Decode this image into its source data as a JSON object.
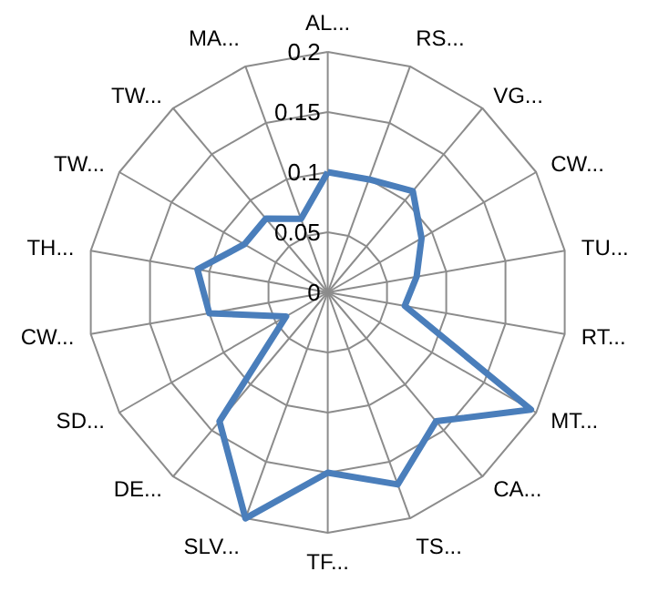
{
  "chart_data": {
    "type": "radar",
    "categories": [
      "AL...",
      "RS...",
      "VG...",
      "CW...",
      "TU...",
      "RT...",
      "MT...",
      "CA...",
      "TS...",
      "TF...",
      "SLV...",
      "DE...",
      "SD...",
      "CW...",
      "TH...",
      "TW...",
      "TW...",
      "MA..."
    ],
    "series": [
      {
        "color": "#4a7ebb",
        "values": [
          0.1,
          0.1,
          0.11,
          0.09,
          0.075,
          0.065,
          0.195,
          0.14,
          0.17,
          0.15,
          0.2,
          0.14,
          0.04,
          0.1,
          0.11,
          0.08,
          0.08,
          0.065
        ]
      }
    ],
    "ylim": [
      0,
      0.2
    ],
    "yticks": [
      0,
      0.05,
      0.1,
      0.15,
      0.2
    ],
    "grid": true,
    "marker": "none",
    "line_style": "solid"
  }
}
